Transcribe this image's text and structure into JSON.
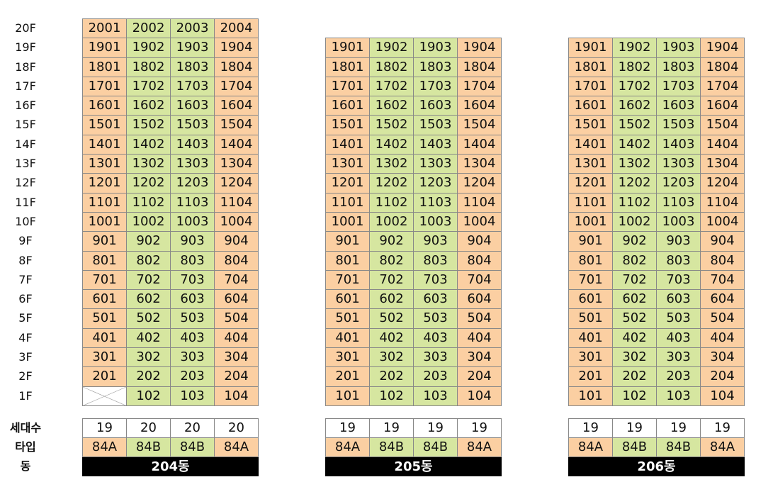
{
  "floors": [
    "20F",
    "19F",
    "18F",
    "17F",
    "16F",
    "15F",
    "14F",
    "13F",
    "12F",
    "11F",
    "10F",
    "9F",
    "8F",
    "7F",
    "6F",
    "5F",
    "4F",
    "3F",
    "2F",
    "1F"
  ],
  "row_labels": {
    "households": "세대수",
    "type": "타입",
    "building": "동"
  },
  "colors": {
    "type_84A": "#fbcfa2",
    "type_84B": "#d6e6a0",
    "building_bar": "#000000"
  },
  "buildings": [
    {
      "name": "204동",
      "top_floor": 20,
      "units_1f": [
        null,
        "102",
        "103",
        "104"
      ],
      "counts": [
        "19",
        "20",
        "20",
        "20"
      ],
      "types": [
        "84A",
        "84B",
        "84B",
        "84A"
      ]
    },
    {
      "name": "205동",
      "top_floor": 19,
      "units_1f": [
        "101",
        "102",
        "103",
        "104"
      ],
      "counts": [
        "19",
        "19",
        "19",
        "19"
      ],
      "types": [
        "84A",
        "84B",
        "84B",
        "84A"
      ]
    },
    {
      "name": "206동",
      "top_floor": 19,
      "units_1f": [
        "101",
        "102",
        "103",
        "104"
      ],
      "counts": [
        "19",
        "19",
        "19",
        "19"
      ],
      "types": [
        "84A",
        "84B",
        "84B",
        "84A"
      ]
    }
  ]
}
